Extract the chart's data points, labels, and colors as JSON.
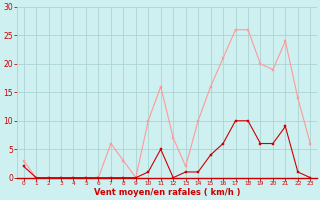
{
  "hours": [
    0,
    1,
    2,
    3,
    4,
    5,
    6,
    7,
    8,
    9,
    10,
    11,
    12,
    13,
    14,
    15,
    16,
    17,
    18,
    19,
    20,
    21,
    22,
    23
  ],
  "vent_moyen": [
    2,
    0,
    0,
    0,
    0,
    0,
    0,
    0,
    0,
    0,
    1,
    5,
    0,
    1,
    1,
    4,
    6,
    10,
    10,
    6,
    6,
    9,
    1,
    0
  ],
  "rafales": [
    3,
    0,
    0,
    0,
    0,
    0,
    0,
    6,
    3,
    0,
    10,
    16,
    7,
    2,
    10,
    16,
    21,
    26,
    26,
    20,
    19,
    24,
    14,
    6
  ],
  "bg_color": "#cff0f0",
  "grid_color": "#aad4d4",
  "line_color_moyen": "#cc0000",
  "line_color_rafales": "#ff9999",
  "xlabel": "Vent moyen/en rafales ( km/h )",
  "xlabel_color": "#cc0000",
  "tick_color": "#cc0000",
  "axis_line_color": "#cc0000",
  "ylim": [
    0,
    30
  ],
  "yticks": [
    0,
    5,
    10,
    15,
    20,
    25,
    30
  ],
  "ylabel_fontsize": 5.5,
  "xlabel_fontsize": 6.0,
  "xtick_fontsize": 4.2,
  "ytick_fontsize": 5.5
}
